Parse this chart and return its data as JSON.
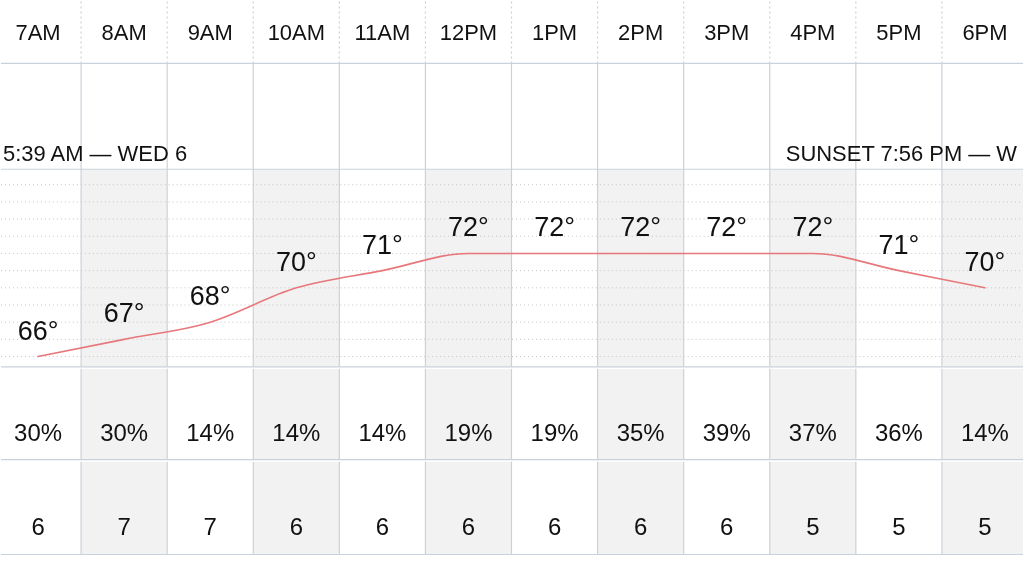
{
  "chart_data": [
    {
      "type": "line",
      "categories": [
        "7AM",
        "8AM",
        "9AM",
        "10AM",
        "11AM",
        "12PM",
        "1PM",
        "2PM",
        "3PM",
        "4PM",
        "5PM",
        "6PM"
      ],
      "values": [
        66,
        67,
        68,
        70,
        71,
        72,
        72,
        72,
        72,
        72,
        71,
        70
      ],
      "value_labels": [
        "66°",
        "67°",
        "68°",
        "70°",
        "71°",
        "72°",
        "72°",
        "72°",
        "72°",
        "72°",
        "71°",
        "70°"
      ],
      "color": "#e8777b",
      "ylim": [
        65.4,
        76.9
      ],
      "yticks": [
        {
          "value": 66,
          "label": null
        },
        {
          "value": 67,
          "label": null
        },
        {
          "value": 68,
          "label": null
        },
        {
          "value": 69,
          "label": null
        },
        {
          "value": 70,
          "label": null
        },
        {
          "value": 71,
          "label": null
        },
        {
          "value": 72,
          "label": null
        },
        {
          "value": 73,
          "label": null
        },
        {
          "value": 74,
          "label": null
        },
        {
          "value": 75,
          "label": null
        },
        {
          "value": 76,
          "label": null
        }
      ],
      "grid": "y",
      "tick_labels": "x",
      "bands": [
        {
          "axis": "x",
          "from": "8AM",
          "to": "8AM",
          "color": "#f2f2f2"
        },
        {
          "axis": "x",
          "from": "10AM",
          "to": "10AM",
          "color": "#f2f2f2"
        },
        {
          "axis": "x",
          "from": "12PM",
          "to": "12PM",
          "color": "#f2f2f2"
        },
        {
          "axis": "x",
          "from": "2PM",
          "to": "2PM",
          "color": "#f2f2f2"
        },
        {
          "axis": "x",
          "from": "4PM",
          "to": "4PM",
          "color": "#f2f2f2"
        },
        {
          "axis": "x",
          "from": "6PM",
          "to": "6PM",
          "color": "#f2f2f2"
        }
      ],
      "annotations": [
        "5:39 AM — WED 6",
        "SUNSET 7:56 PM — W"
      ]
    },
    {
      "type": "other",
      "values": [
        30,
        30,
        14,
        14,
        14,
        19,
        19,
        35,
        39,
        37,
        36,
        14
      ],
      "value_labels": [
        "30%",
        "30%",
        "14%",
        "14%",
        "14%",
        "19%",
        "19%",
        "35%",
        "39%",
        "37%",
        "36%",
        "14%"
      ]
    },
    {
      "type": "other",
      "values": [
        6,
        7,
        7,
        6,
        6,
        6,
        6,
        6,
        6,
        5,
        5,
        5
      ],
      "data_labels": true
    }
  ]
}
